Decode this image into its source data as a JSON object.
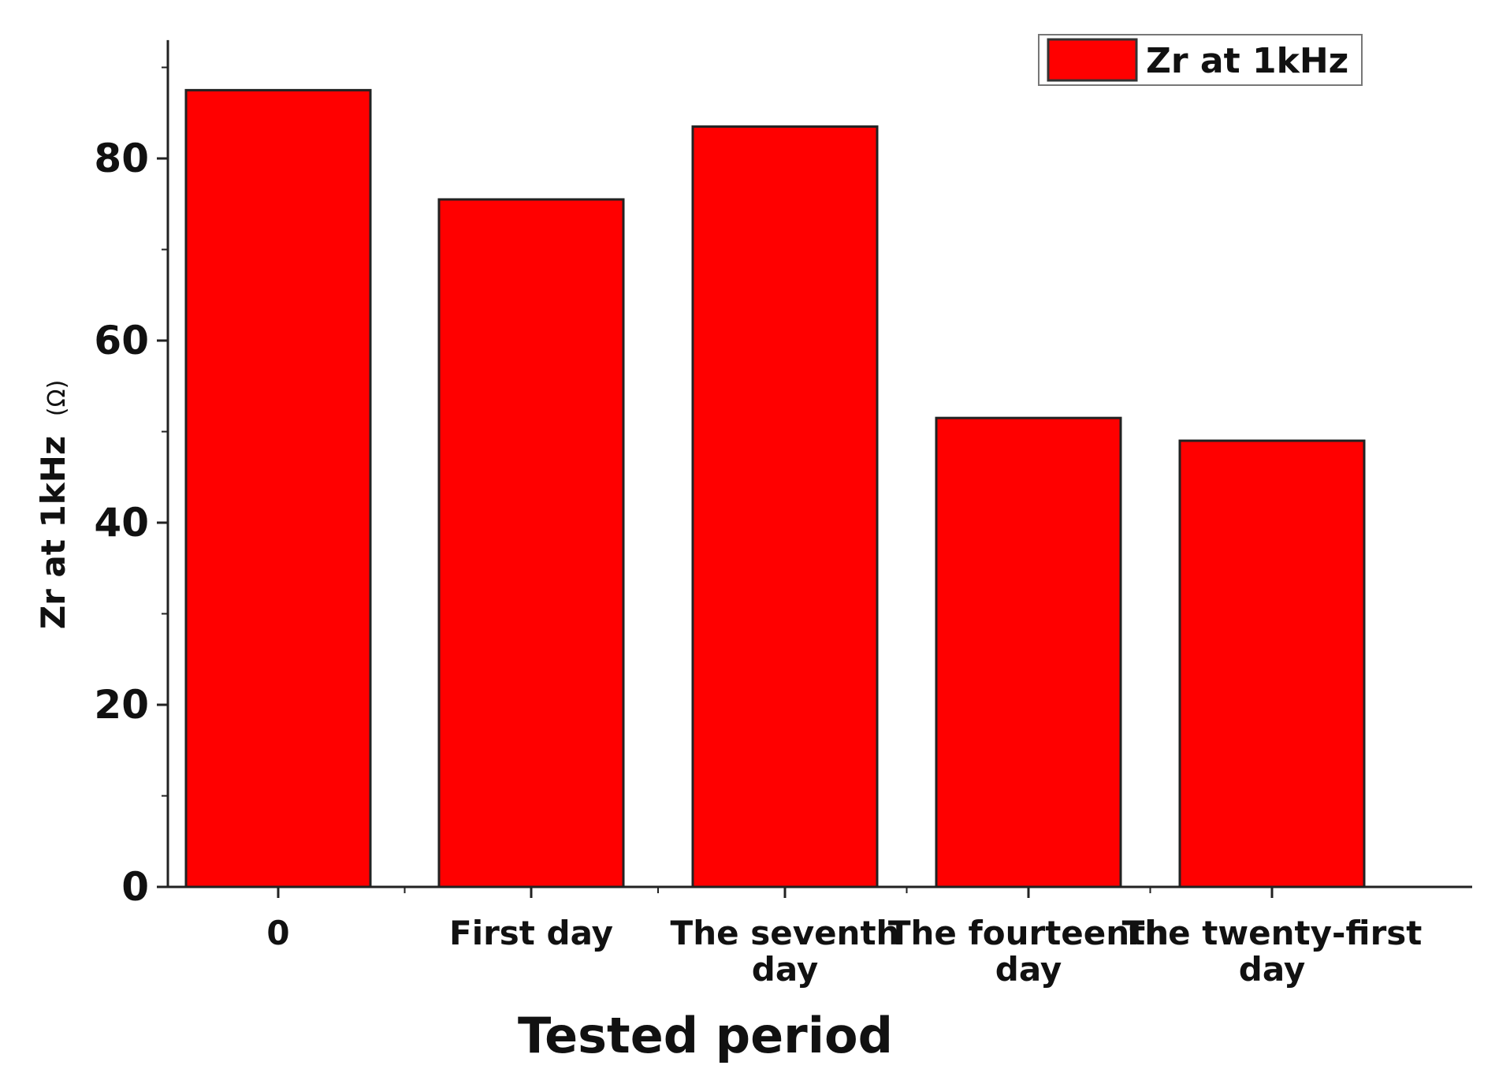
{
  "chart_data": {
    "type": "bar",
    "title": "",
    "categories": [
      [
        "0"
      ],
      [
        "First day"
      ],
      [
        "The seventh",
        "day"
      ],
      [
        "The fourteenth",
        "day"
      ],
      [
        "The twenty-first",
        "day"
      ]
    ],
    "series": [
      {
        "name": "Zr at 1kHz",
        "color": "#ff0000",
        "values": [
          87.5,
          75.5,
          83.5,
          51.5,
          49.0
        ]
      }
    ],
    "xlabel": "Tested period",
    "ylabel": "Zr at 1kHz",
    "ylabel_unit": "(Ω)",
    "ylim": [
      0,
      93
    ],
    "yticks": [
      0,
      20,
      40,
      60,
      80
    ],
    "minor_ticks": true,
    "grid": false,
    "legend_position": "top-right"
  }
}
